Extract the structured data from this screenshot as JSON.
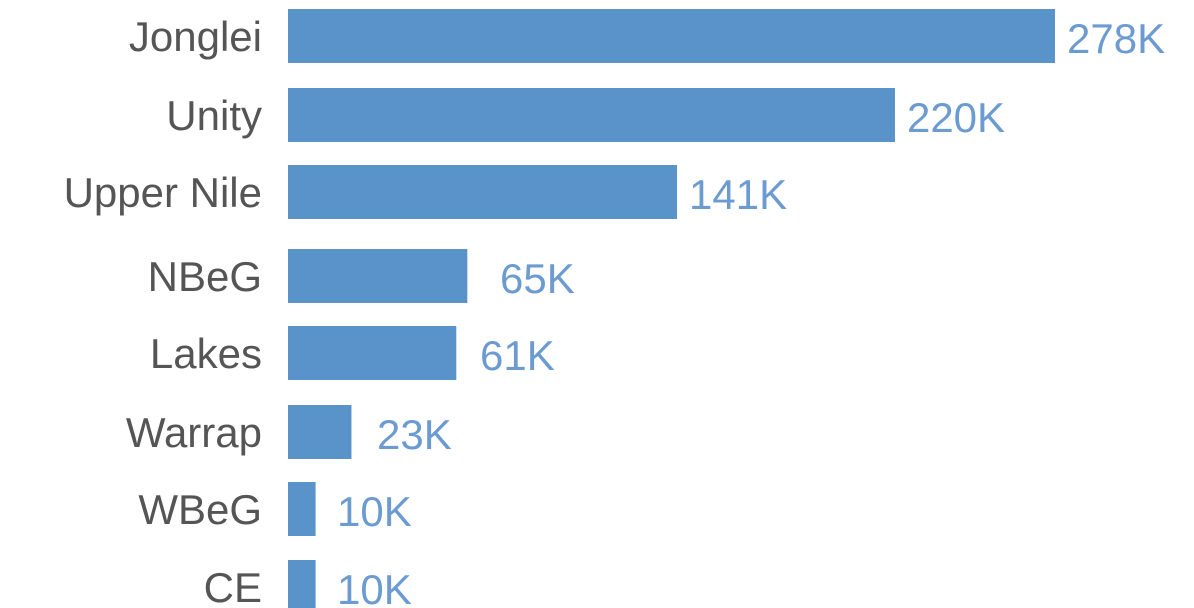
{
  "chart_data": {
    "type": "bar",
    "orientation": "horizontal",
    "title": "",
    "xlabel": "",
    "ylabel": "",
    "categories": [
      "Jonglei",
      "Unity",
      "Upper Nile",
      "NBeG",
      "Lakes",
      "Warrap",
      "WBeG",
      "CE"
    ],
    "values": [
      278000,
      220000,
      141000,
      65000,
      61000,
      23000,
      10000,
      10000
    ],
    "value_labels": [
      "278K",
      "220K",
      "141K",
      "65K",
      "61K",
      "23K",
      "10K",
      "10K"
    ],
    "xlim": [
      0,
      278000
    ],
    "grid": false,
    "legend": "none"
  },
  "colors": {
    "bar": "#5a93c9",
    "value_label": "#6b9bd1",
    "category_label": "#555555"
  }
}
